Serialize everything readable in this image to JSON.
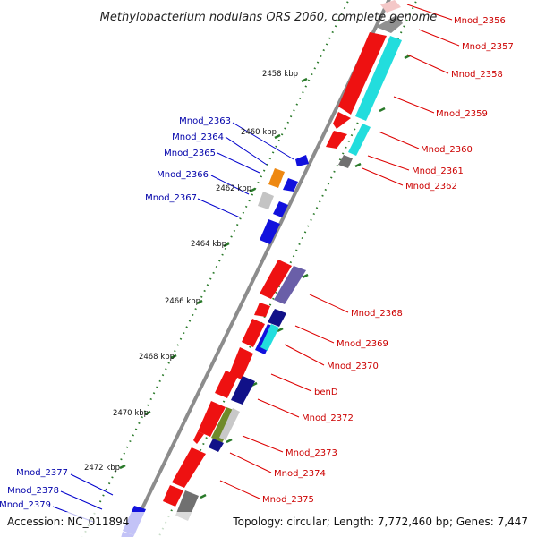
{
  "title": "Methylobacterium nodulans ORS 2060, complete genome",
  "accession": "Accession: NC_011894",
  "topology": "Topology: circular; Length: 7,772,460 bp; Genes: 7,447",
  "colors": {
    "backbone": "#8c8c8c",
    "tick": "#2a7a2a",
    "red": "#ee1111",
    "blue": "#1111dd",
    "cyan": "#22dddd",
    "navy": "#111188",
    "grey": "#9a9a9a",
    "olive": "#6f8a2a",
    "orange": "#ee8811",
    "label_red": "#cc0000",
    "label_blue": "#0000aa"
  },
  "kbp_labels": [
    "2458 kbp",
    "2460 kbp",
    "2462 kbp",
    "2464 kbp",
    "2466 kbp",
    "2468 kbp",
    "2470 kbp",
    "2472 kbp"
  ],
  "right_labels": [
    "Mnod_2356",
    "Mnod_2357",
    "Mnod_2358",
    "Mnod_2359",
    "Mnod_2360",
    "Mnod_2361",
    "Mnod_2362",
    "Mnod_2368",
    "Mnod_2369",
    "Mnod_2370",
    "benD",
    "Mnod_2372",
    "Mnod_2373",
    "Mnod_2374",
    "Mnod_2375"
  ],
  "left_labels": [
    "Mnod_2363",
    "Mnod_2364",
    "Mnod_2365",
    "Mnod_2366",
    "Mnod_2367",
    "Mnod_2377",
    "Mnod_2378",
    "Mnod_2379"
  ]
}
